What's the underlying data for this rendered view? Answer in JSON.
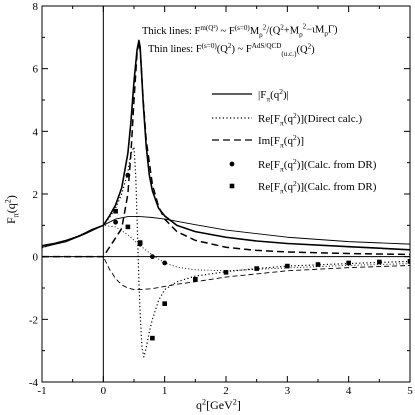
{
  "chart_data": {
    "type": "line",
    "xlabel_main": "q",
    "xlabel_sup": "2",
    "xlabel_unit": "[GeV",
    "xlabel_unit_sup": "2",
    "xlabel_close": "]",
    "ylabel_main": "F",
    "ylabel_sub": "π",
    "ylabel_arg": "(q",
    "ylabel_arg_sup": "2",
    "ylabel_close": ")",
    "xlim": [
      -1,
      5
    ],
    "ylim": [
      -4,
      8
    ],
    "xticks": [
      -1,
      0,
      1,
      2,
      3,
      4,
      5
    ],
    "yticks": [
      -4,
      -2,
      0,
      2,
      4,
      6,
      8
    ],
    "grid": false,
    "legend_position": "right",
    "annotations": {
      "thick_prefix": "Thick lines: F",
      "thick_sup1": "m(Q²)",
      "thick_mid1": " ~ F",
      "thick_sup2": "(s=0)",
      "thick_mid2": "M",
      "thick_sub2": "ρ",
      "thick_sup3": "2",
      "thick_mid3": "/(Q",
      "thick_sup4": "2",
      "thick_mid4": "+M",
      "thick_sub4": "ρ",
      "thick_sup5": "2",
      "thick_mid5": "−ιM",
      "thick_sub5": "ρ",
      "thick_end": "Γ)",
      "thin_prefix": "Thin lines: F",
      "thin_sup1": "(s=0)",
      "thin_mid1": "(Q",
      "thin_sup2": "2",
      "thin_mid2": ") ~ F",
      "thin_sup3": "AdS/QCD",
      "thin_sub3": "(u.c.)",
      "thin_mid3": "(Q",
      "thin_sup4": "2",
      "thin_end": ")"
    },
    "legend": [
      {
        "label": "|F",
        "sub": "π",
        "label2": "(q",
        "sup": "2",
        "label3": ")|",
        "style": "solid"
      },
      {
        "label": "Re[F",
        "sub": "π",
        "label2": "(q",
        "sup": "2",
        "label3": ")](Direct calc.)",
        "style": "dotted"
      },
      {
        "label": "Im[F",
        "sub": "π",
        "label2": "(q",
        "sup": "2",
        "label3": ")]",
        "style": "dashed"
      },
      {
        "label": "Re[F",
        "sub": "π",
        "label2": "(q",
        "sup": "2",
        "label3": ")](Calc. from DR)",
        "style": "circle"
      },
      {
        "label": "Re[F",
        "sub": "π",
        "label2": "(q",
        "sup": "2",
        "label3": ")](Calc. from DR)",
        "style": "square"
      }
    ],
    "series": [
      {
        "style": "solid-thick",
        "x": [
          -1,
          -0.8,
          -0.6,
          -0.4,
          -0.2,
          0,
          0.1,
          0.2,
          0.3,
          0.4,
          0.45,
          0.5,
          0.55,
          0.58,
          0.6,
          0.62,
          0.65,
          0.7,
          0.75,
          0.8,
          0.9,
          1.0,
          1.2,
          1.5,
          2.0,
          2.5,
          3.0,
          4.0,
          5.0
        ],
        "y": [
          0.35,
          0.42,
          0.52,
          0.65,
          0.85,
          1.0,
          1.3,
          1.65,
          2.2,
          3.3,
          4.3,
          5.6,
          6.6,
          6.9,
          6.7,
          6.0,
          4.9,
          3.5,
          2.6,
          2.1,
          1.55,
          1.3,
          1.0,
          0.8,
          0.62,
          0.5,
          0.42,
          0.32,
          0.22
        ]
      },
      {
        "style": "solid-thin",
        "x": [
          -1,
          -0.6,
          -0.3,
          0,
          0.2,
          0.4,
          0.6,
          0.8,
          1.0,
          1.5,
          2.0,
          3.0,
          4.0,
          5.0
        ],
        "y": [
          0.3,
          0.48,
          0.72,
          1.0,
          1.2,
          1.28,
          1.28,
          1.25,
          1.2,
          1.02,
          0.85,
          0.62,
          0.48,
          0.4
        ]
      },
      {
        "style": "dotted-thick",
        "x": [
          -1,
          -0.6,
          -0.3,
          0,
          0.1,
          0.2,
          0.3,
          0.4,
          0.45,
          0.5,
          0.53,
          0.55,
          0.58,
          0.6,
          0.63,
          0.66,
          0.7,
          0.75,
          0.8,
          0.9,
          1.0,
          1.2,
          1.5,
          2.0,
          2.5,
          3.0,
          4.0,
          5.0
        ],
        "y": [
          0.32,
          0.5,
          0.75,
          1.0,
          1.25,
          1.55,
          2.0,
          2.7,
          3.3,
          3.5,
          2.5,
          1.2,
          -0.8,
          -1.8,
          -2.9,
          -3.2,
          -2.9,
          -2.4,
          -2.0,
          -1.4,
          -1.05,
          -0.8,
          -0.62,
          -0.48,
          -0.38,
          -0.3,
          -0.22,
          -0.15
        ]
      },
      {
        "style": "dotted-thin",
        "x": [
          -1,
          -0.5,
          0,
          0.2,
          0.4,
          0.6,
          0.8,
          1.0,
          1.2,
          1.5,
          2.0,
          3.0,
          4.0,
          5.0
        ],
        "y": [
          0.28,
          0.6,
          1.0,
          0.95,
          0.7,
          0.35,
          0.05,
          -0.2,
          -0.33,
          -0.42,
          -0.45,
          -0.36,
          -0.28,
          -0.22
        ]
      },
      {
        "style": "dashed-thick",
        "x": [
          -1,
          0,
          0.3,
          0.4,
          0.45,
          0.5,
          0.55,
          0.58,
          0.6,
          0.62,
          0.65,
          0.7,
          0.8,
          0.9,
          1.0,
          1.2,
          1.5,
          2.0,
          2.5,
          3.0,
          4.0,
          5.0
        ],
        "y": [
          0,
          0,
          0.9,
          2.0,
          3.3,
          5.0,
          6.5,
          6.85,
          6.6,
          6.0,
          5.0,
          3.7,
          2.3,
          1.6,
          1.2,
          0.8,
          0.52,
          0.3,
          0.2,
          0.15,
          0.1,
          0.07
        ]
      },
      {
        "style": "dashed-thin",
        "x": [
          -1,
          0,
          0.1,
          0.2,
          0.3,
          0.4,
          0.5,
          0.6,
          0.8,
          1.0,
          1.2,
          1.5,
          2.0,
          2.5,
          3.0,
          4.0,
          5.0
        ],
        "y": [
          0,
          0,
          -0.4,
          -0.7,
          -0.9,
          -1.0,
          -1.05,
          -1.05,
          -1.02,
          -0.95,
          -0.88,
          -0.8,
          -0.65,
          -0.55,
          -0.45,
          -0.35,
          -0.28
        ]
      }
    ],
    "markers": {
      "circles": {
        "x": [
          0.2,
          0.4,
          0.6,
          0.8,
          1.0
        ],
        "y": [
          1.1,
          2.6,
          0.4,
          0.0,
          -0.2
        ]
      },
      "squares": {
        "x": [
          0.2,
          0.4,
          0.6,
          0.8,
          1.0,
          1.5,
          2.0,
          2.5,
          3.0,
          3.5,
          4.0,
          4.5,
          5.0
        ],
        "y": [
          1.45,
          0.95,
          0.45,
          -2.6,
          -1.5,
          -0.72,
          -0.5,
          -0.38,
          -0.3,
          -0.25,
          -0.2,
          -0.17,
          -0.15
        ]
      }
    }
  }
}
